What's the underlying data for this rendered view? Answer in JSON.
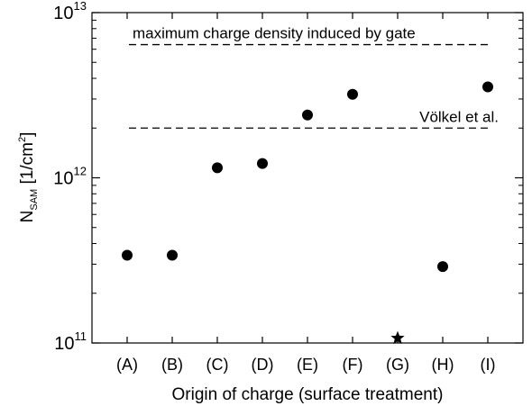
{
  "chart_data": {
    "type": "scatter",
    "x_axis": {
      "label": "Origin of charge (surface treatment)",
      "categories": [
        "(A)",
        "(B)",
        "(C)",
        "(D)",
        "(E)",
        "(F)",
        "(G)",
        "(H)",
        "(I)"
      ]
    },
    "y_axis": {
      "label_main": "N",
      "label_sub": "SAM",
      "label_unit_open": " [1/cm",
      "label_unit_sup": "2",
      "label_unit_close": "]",
      "scale": "log",
      "ylim": [
        100000000000.0,
        10000000000000.0
      ],
      "tick_base": "10",
      "ticks": [
        {
          "value": 100000000000.0,
          "exponent": "11"
        },
        {
          "value": 1000000000000.0,
          "exponent": "12"
        },
        {
          "value": 10000000000000.0,
          "exponent": "13"
        }
      ]
    },
    "points": [
      {
        "category": "(A)",
        "y": 340000000000.0,
        "marker": "circle"
      },
      {
        "category": "(B)",
        "y": 340000000000.0,
        "marker": "circle"
      },
      {
        "category": "(C)",
        "y": 1150000000000.0,
        "marker": "circle"
      },
      {
        "category": "(D)",
        "y": 1220000000000.0,
        "marker": "circle"
      },
      {
        "category": "(E)",
        "y": 2400000000000.0,
        "marker": "circle"
      },
      {
        "category": "(F)",
        "y": 3200000000000.0,
        "marker": "circle"
      },
      {
        "category": "(G)",
        "y": 107000000000.0,
        "marker": "star"
      },
      {
        "category": "(H)",
        "y": 290000000000.0,
        "marker": "circle"
      },
      {
        "category": "(I)",
        "y": 3550000000000.0,
        "marker": "circle"
      }
    ],
    "reference_lines": [
      {
        "label": "maximum charge density induced by gate",
        "y": 6400000000000.0,
        "style": "dashed"
      },
      {
        "label": "Völkel et al.",
        "y": 2000000000000.0,
        "style": "dashed"
      }
    ],
    "grid": false,
    "legend": "none"
  }
}
